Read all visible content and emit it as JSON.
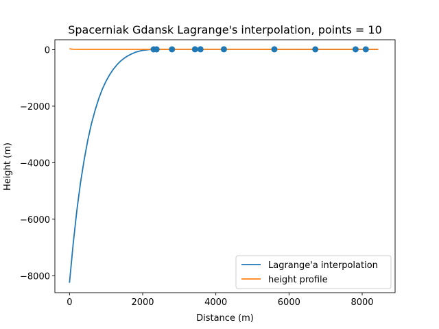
{
  "chart_data": {
    "type": "line",
    "title": "Spacerniak Gdansk Lagrange's interpolation, points = 10",
    "xlabel": "Distance (m)",
    "ylabel": "Height (m)",
    "xlim": [
      -400,
      8900
    ],
    "ylim": [
      -8600,
      350
    ],
    "xticks": [
      0,
      2000,
      4000,
      6000,
      8000
    ],
    "xtick_labels": [
      "0",
      "2000",
      "4000",
      "6000",
      "8000"
    ],
    "yticks": [
      0,
      -2000,
      -4000,
      -6000,
      -8000
    ],
    "ytick_labels": [
      "0",
      "−2000",
      "−4000",
      "−6000",
      "−8000"
    ],
    "grid": false,
    "legend_position": "bottom-right",
    "colors": {
      "interpolation": "#1f77b4",
      "profile": "#ff7f0e",
      "points": "#1f77b4"
    },
    "series": [
      {
        "name": "Lagrange'a interpolation",
        "x": [
          0,
          100,
          200,
          300,
          400,
          500,
          600,
          700,
          800,
          900,
          1000,
          1100,
          1200,
          1300,
          1400,
          1500,
          1600,
          1700,
          1800,
          1900,
          2000,
          2100,
          2200,
          2300,
          2400,
          3000,
          4000,
          5000,
          6000,
          7000,
          8000,
          8440
        ],
        "y": [
          -8250,
          -6870,
          -5700,
          -4720,
          -3900,
          -3200,
          -2620,
          -2140,
          -1730,
          -1390,
          -1110,
          -880,
          -690,
          -530,
          -400,
          -300,
          -215,
          -150,
          -95,
          -55,
          -25,
          -8,
          5,
          10,
          12,
          14,
          14,
          13,
          12,
          11,
          10,
          10
        ]
      },
      {
        "name": "height profile",
        "x": [
          0,
          100,
          300,
          800,
          1500,
          2300,
          3000,
          4000,
          5000,
          6000,
          7000,
          8000,
          8440
        ],
        "y": [
          30,
          12,
          10,
          10,
          10,
          11,
          12,
          13,
          12,
          11,
          10,
          10,
          10
        ]
      }
    ],
    "points": {
      "x": [
        2300,
        2380,
        2800,
        3430,
        3580,
        4220,
        5600,
        6720,
        7820,
        8100
      ],
      "y": [
        10,
        10,
        11,
        12,
        12,
        13,
        12,
        11,
        10,
        10
      ]
    }
  }
}
